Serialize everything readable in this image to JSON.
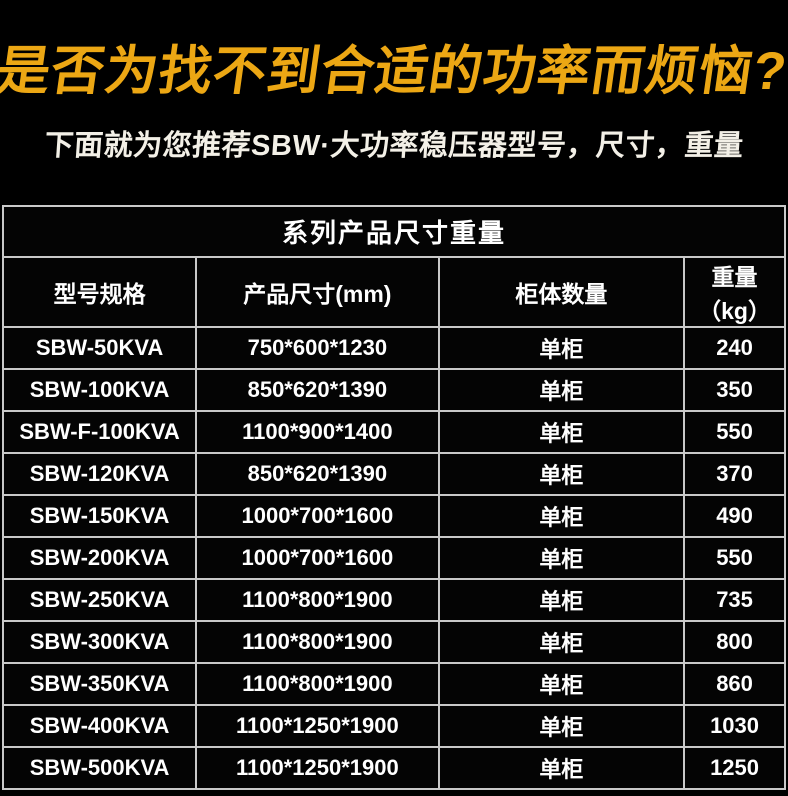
{
  "page": {
    "title": "是否为找不到合适的功率而烦恼?",
    "subtitle": "下面就为您推荐SBW·大功率稳压器型号，尺寸，重量"
  },
  "table": {
    "caption": "系列产品尺寸重量",
    "columns": [
      "型号规格",
      "产品尺寸(mm)",
      "柜体数量",
      "重量（kg）"
    ],
    "rows": [
      {
        "model": "SBW-50KVA",
        "size": "750*600*1230",
        "cabinets": "单柜",
        "weight": "240"
      },
      {
        "model": "SBW-100KVA",
        "size": "850*620*1390",
        "cabinets": "单柜",
        "weight": "350"
      },
      {
        "model": "SBW-F-100KVA",
        "size": "1100*900*1400",
        "cabinets": "单柜",
        "weight": "550"
      },
      {
        "model": "SBW-120KVA",
        "size": "850*620*1390",
        "cabinets": "单柜",
        "weight": "370"
      },
      {
        "model": "SBW-150KVA",
        "size": "1000*700*1600",
        "cabinets": "单柜",
        "weight": "490"
      },
      {
        "model": "SBW-200KVA",
        "size": "1000*700*1600",
        "cabinets": "单柜",
        "weight": "550"
      },
      {
        "model": "SBW-250KVA",
        "size": "1100*800*1900",
        "cabinets": "单柜",
        "weight": "735"
      },
      {
        "model": "SBW-300KVA",
        "size": "1100*800*1900",
        "cabinets": "单柜",
        "weight": "800"
      },
      {
        "model": "SBW-350KVA",
        "size": "1100*800*1900",
        "cabinets": "单柜",
        "weight": "860"
      },
      {
        "model": "SBW-400KVA",
        "size": "1100*1250*1900",
        "cabinets": "单柜",
        "weight": "1030"
      },
      {
        "model": "SBW-500KVA",
        "size": "1100*1250*1900",
        "cabinets": "单柜",
        "weight": "1250"
      }
    ]
  },
  "colors": {
    "accent_gold": "#ECA714",
    "text_white": "#FFFFFF",
    "background": "#000000",
    "table_border": "#C9C9C9"
  }
}
